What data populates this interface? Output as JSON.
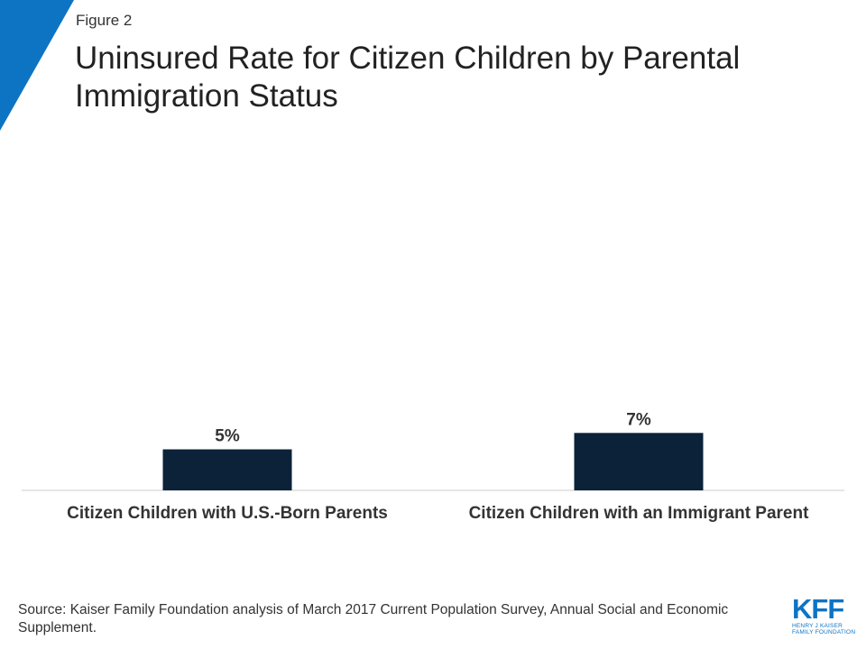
{
  "header": {
    "figure_label": "Figure 2",
    "title": "Uninsured Rate for Citizen Children by Parental Immigration Status"
  },
  "chart_data": {
    "type": "bar",
    "title": "Uninsured Rate for Citizen Children by Parental Immigration Status",
    "categories": [
      "Citizen Children with U.S.-Born Parents",
      "Citizen Children with an Immigrant Parent"
    ],
    "values": [
      5,
      7
    ],
    "value_labels": [
      "5%",
      "7%"
    ],
    "xlabel": "",
    "ylabel": "",
    "ylim": [
      0,
      40
    ],
    "grid": false,
    "legend": "none",
    "bar_color": "#0b2239"
  },
  "footer": {
    "source": "Source: Kaiser Family Foundation analysis of March 2017 Current Population Survey, Annual Social and Economic Supplement."
  },
  "logo": {
    "mark": "KFF",
    "line1": "HENRY J KAISER",
    "line2": "FAMILY FOUNDATION"
  },
  "colors": {
    "accent": "#0d74c4",
    "bar": "#0b2239",
    "axis": "#cccccc"
  }
}
